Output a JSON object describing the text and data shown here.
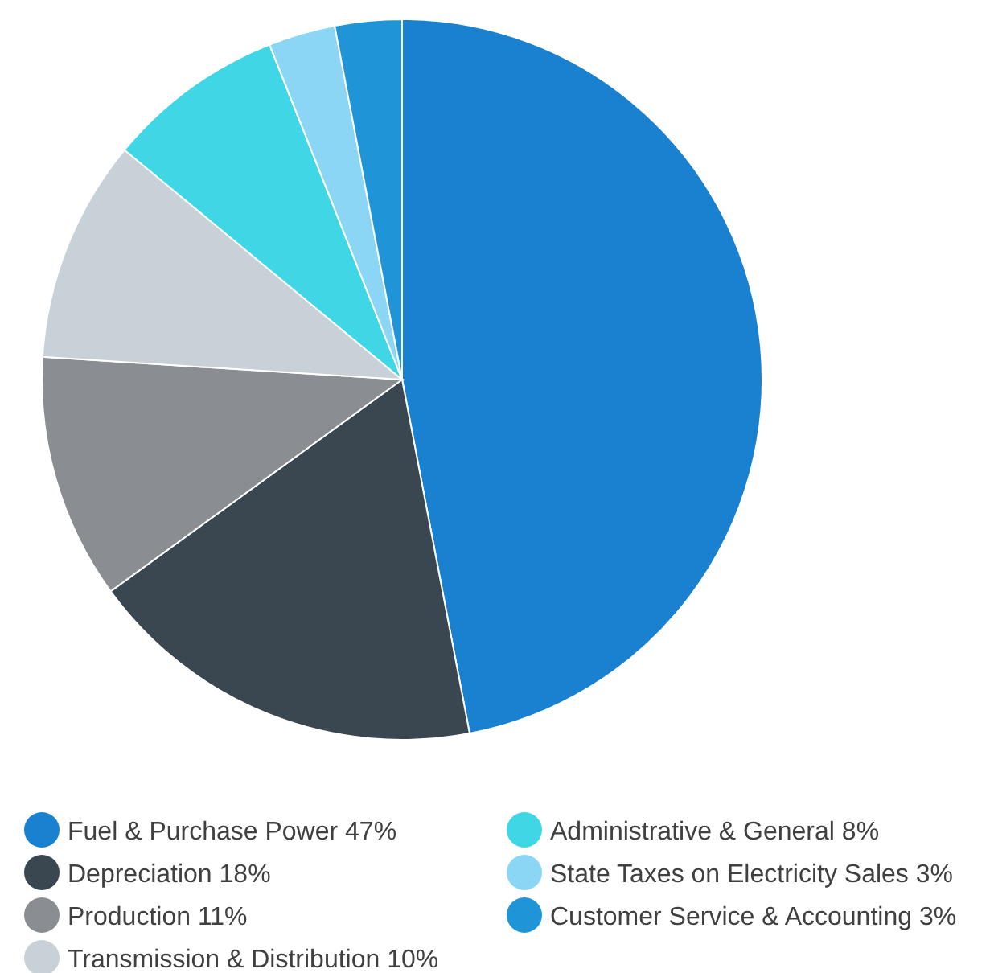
{
  "chart_data": {
    "type": "pie",
    "categories": [
      "Fuel & Purchase Power",
      "Depreciation",
      "Production",
      "Transmission & Distribution",
      "Administrative & General",
      "State Taxes on Electricity Sales",
      "Customer Service & Accounting"
    ],
    "values": [
      47,
      18,
      11,
      10,
      8,
      3,
      3
    ],
    "value_labels": [
      "47%",
      "18%",
      "11%",
      "10%",
      "8%",
      "3%",
      "3%"
    ],
    "colors": [
      "#1a80d0",
      "#3a4650",
      "#8a8d92",
      "#c8d0d8",
      "#3fd6e6",
      "#8ad6f4",
      "#1f95d8"
    ],
    "legend": "bottom"
  }
}
